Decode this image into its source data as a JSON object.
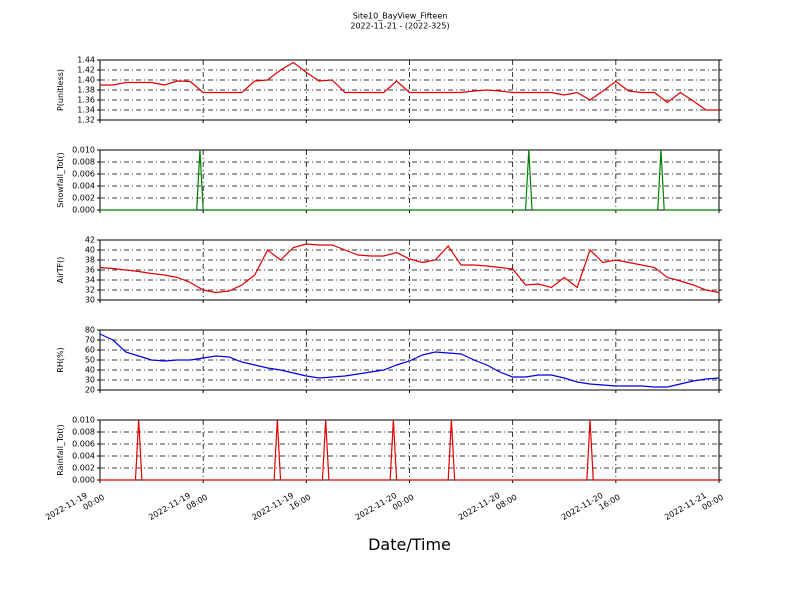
{
  "title": "Site10_BayView_Fifteen",
  "subtitle": "2022-11-21 - (2022-325)",
  "chart_data": [
    {
      "type": "line",
      "ylabel": "P(unitless)",
      "color": "#e00000",
      "grid": true,
      "xlim": [
        "2022-11-19 00:00",
        "2022-11-21 00:00"
      ],
      "xticks": [
        "2022-11-19 00:00",
        "2022-11-19 08:00",
        "2022-11-19 16:00",
        "2022-11-20 00:00",
        "2022-11-20 08:00",
        "2022-11-20 16:00",
        "2022-11-21 00:00"
      ],
      "ylim": [
        1.32,
        1.44
      ],
      "yticks": [
        1.32,
        1.34,
        1.36,
        1.38,
        {
          "value": 1.4,
          "label": "1.40"
        },
        1.42,
        1.44
      ],
      "x": [
        "2022-11-19 00:00",
        "2022-11-19 01:00",
        "2022-11-19 02:00",
        "2022-11-19 03:00",
        "2022-11-19 04:00",
        "2022-11-19 05:00",
        "2022-11-19 06:00",
        "2022-11-19 07:00",
        "2022-11-19 08:00",
        "2022-11-19 09:00",
        "2022-11-19 10:00",
        "2022-11-19 11:00",
        "2022-11-19 12:00",
        "2022-11-19 13:00",
        "2022-11-19 14:00",
        "2022-11-19 15:00",
        "2022-11-19 16:00",
        "2022-11-19 17:00",
        "2022-11-19 18:00",
        "2022-11-19 19:00",
        "2022-11-19 20:00",
        "2022-11-19 21:00",
        "2022-11-19 22:00",
        "2022-11-19 23:00",
        "2022-11-20 00:00",
        "2022-11-20 01:00",
        "2022-11-20 02:00",
        "2022-11-20 03:00",
        "2022-11-20 04:00",
        "2022-11-20 05:00",
        "2022-11-20 06:00",
        "2022-11-20 07:00",
        "2022-11-20 08:00",
        "2022-11-20 09:00",
        "2022-11-20 10:00",
        "2022-11-20 11:00",
        "2022-11-20 12:00",
        "2022-11-20 13:00",
        "2022-11-20 14:00",
        "2022-11-20 15:00",
        "2022-11-20 16:00",
        "2022-11-20 17:00",
        "2022-11-20 18:00",
        "2022-11-20 19:00",
        "2022-11-20 20:00",
        "2022-11-20 21:00",
        "2022-11-20 22:00",
        "2022-11-20 23:00",
        "2022-11-21 00:00"
      ],
      "values": [
        1.39,
        1.39,
        1.395,
        1.395,
        1.395,
        1.39,
        1.398,
        1.397,
        1.375,
        1.375,
        1.375,
        1.375,
        1.398,
        1.4,
        1.42,
        1.435,
        1.415,
        1.398,
        1.4,
        1.375,
        1.375,
        1.375,
        1.375,
        1.398,
        1.375,
        1.375,
        1.375,
        1.375,
        1.375,
        1.378,
        1.38,
        1.378,
        1.375,
        1.375,
        1.375,
        1.375,
        1.37,
        1.375,
        1.36,
        1.378,
        1.397,
        1.378,
        1.375,
        1.375,
        1.355,
        1.375,
        1.358,
        1.34,
        1.34
      ]
    },
    {
      "type": "line",
      "ylabel": "Snowfall_Tot()",
      "color": "#008000",
      "grid": true,
      "xlim": [
        "2022-11-19 00:00",
        "2022-11-21 00:00"
      ],
      "xticks": [
        "2022-11-19 00:00",
        "2022-11-19 08:00",
        "2022-11-19 16:00",
        "2022-11-20 00:00",
        "2022-11-20 08:00",
        "2022-11-20 16:00",
        "2022-11-21 00:00"
      ],
      "ylim": [
        0,
        0.01
      ],
      "yticks": [
        {
          "value": 0,
          "label": "0.000"
        },
        0.002,
        0.004,
        0.006,
        0.008,
        {
          "value": 0.01,
          "label": "0.010"
        }
      ],
      "x": [
        "2022-11-19 00:00",
        "2022-11-19 07:30",
        "2022-11-19 07:45",
        "2022-11-19 08:00",
        "2022-11-20 09:00",
        "2022-11-20 09:15",
        "2022-11-20 09:30",
        "2022-11-20 19:15",
        "2022-11-20 19:30",
        "2022-11-20 19:45",
        "2022-11-21 00:00"
      ],
      "values": [
        0,
        0,
        0.01,
        0,
        0,
        0.01,
        0,
        0,
        0.01,
        0,
        0
      ]
    },
    {
      "type": "line",
      "ylabel": "AirTF()",
      "color": "#e00000",
      "grid": true,
      "xlim": [
        "2022-11-19 00:00",
        "2022-11-21 00:00"
      ],
      "xticks": [
        "2022-11-19 00:00",
        "2022-11-19 08:00",
        "2022-11-19 16:00",
        "2022-11-20 00:00",
        "2022-11-20 08:00",
        "2022-11-20 16:00",
        "2022-11-21 00:00"
      ],
      "ylim": [
        30,
        42
      ],
      "yticks": [
        30,
        32,
        34,
        36,
        38,
        40,
        42
      ],
      "x": [
        "2022-11-19 00:00",
        "2022-11-19 01:00",
        "2022-11-19 02:00",
        "2022-11-19 03:00",
        "2022-11-19 04:00",
        "2022-11-19 05:00",
        "2022-11-19 06:00",
        "2022-11-19 07:00",
        "2022-11-19 08:00",
        "2022-11-19 09:00",
        "2022-11-19 10:00",
        "2022-11-19 11:00",
        "2022-11-19 12:00",
        "2022-11-19 13:00",
        "2022-11-19 14:00",
        "2022-11-19 15:00",
        "2022-11-19 16:00",
        "2022-11-19 17:00",
        "2022-11-19 18:00",
        "2022-11-19 19:00",
        "2022-11-19 20:00",
        "2022-11-19 21:00",
        "2022-11-19 22:00",
        "2022-11-19 23:00",
        "2022-11-20 00:00",
        "2022-11-20 01:00",
        "2022-11-20 02:00",
        "2022-11-20 03:00",
        "2022-11-20 04:00",
        "2022-11-20 05:00",
        "2022-11-20 06:00",
        "2022-11-20 07:00",
        "2022-11-20 08:00",
        "2022-11-20 09:00",
        "2022-11-20 10:00",
        "2022-11-20 11:00",
        "2022-11-20 12:00",
        "2022-11-20 13:00",
        "2022-11-20 14:00",
        "2022-11-20 15:00",
        "2022-11-20 16:00",
        "2022-11-20 17:00",
        "2022-11-20 18:00",
        "2022-11-20 19:00",
        "2022-11-20 20:00",
        "2022-11-20 21:00",
        "2022-11-20 22:00",
        "2022-11-20 23:00",
        "2022-11-21 00:00"
      ],
      "values": [
        36.5,
        36.3,
        36,
        35.7,
        35.3,
        35,
        34.5,
        33.5,
        32,
        31.5,
        31.8,
        33,
        35,
        40,
        38,
        40.5,
        41.2,
        41,
        41,
        40,
        39,
        38.8,
        38.8,
        39.5,
        38.2,
        37.5,
        38,
        40.8,
        37,
        37,
        36.8,
        36.5,
        36.2,
        33,
        33.2,
        32.5,
        34.5,
        32.5,
        40,
        37.5,
        38,
        37.5,
        37,
        36.5,
        34.5,
        33.8,
        33,
        32,
        31.5
      ]
    },
    {
      "type": "line",
      "ylabel": "RH(%)",
      "color": "#0000e0",
      "grid": true,
      "xlim": [
        "2022-11-19 00:00",
        "2022-11-21 00:00"
      ],
      "xticks": [
        "2022-11-19 00:00",
        "2022-11-19 08:00",
        "2022-11-19 16:00",
        "2022-11-20 00:00",
        "2022-11-20 08:00",
        "2022-11-20 16:00",
        "2022-11-21 00:00"
      ],
      "ylim": [
        20,
        80
      ],
      "yticks": [
        20,
        30,
        40,
        50,
        60,
        70,
        80
      ],
      "x": [
        "2022-11-19 00:00",
        "2022-11-19 01:00",
        "2022-11-19 02:00",
        "2022-11-19 03:00",
        "2022-11-19 04:00",
        "2022-11-19 05:00",
        "2022-11-19 06:00",
        "2022-11-19 07:00",
        "2022-11-19 08:00",
        "2022-11-19 09:00",
        "2022-11-19 10:00",
        "2022-11-19 11:00",
        "2022-11-19 12:00",
        "2022-11-19 13:00",
        "2022-11-19 14:00",
        "2022-11-19 15:00",
        "2022-11-19 16:00",
        "2022-11-19 17:00",
        "2022-11-19 18:00",
        "2022-11-19 19:00",
        "2022-11-19 20:00",
        "2022-11-19 21:00",
        "2022-11-19 22:00",
        "2022-11-19 23:00",
        "2022-11-20 00:00",
        "2022-11-20 01:00",
        "2022-11-20 02:00",
        "2022-11-20 03:00",
        "2022-11-20 04:00",
        "2022-11-20 05:00",
        "2022-11-20 06:00",
        "2022-11-20 07:00",
        "2022-11-20 08:00",
        "2022-11-20 09:00",
        "2022-11-20 10:00",
        "2022-11-20 11:00",
        "2022-11-20 12:00",
        "2022-11-20 13:00",
        "2022-11-20 14:00",
        "2022-11-20 15:00",
        "2022-11-20 16:00",
        "2022-11-20 17:00",
        "2022-11-20 18:00",
        "2022-11-20 19:00",
        "2022-11-20 20:00",
        "2022-11-20 21:00",
        "2022-11-20 22:00",
        "2022-11-20 23:00",
        "2022-11-21 00:00"
      ],
      "values": [
        76,
        70,
        58,
        54,
        50,
        49,
        50,
        50,
        52,
        54,
        53,
        48,
        45,
        42,
        40,
        37,
        34,
        32,
        33,
        34,
        36,
        38,
        40,
        45,
        49,
        55,
        58,
        57,
        56,
        50,
        45,
        38,
        33,
        33,
        35,
        35,
        32,
        28,
        26,
        25,
        24,
        24,
        24,
        23,
        23,
        26,
        29,
        31,
        32
      ]
    },
    {
      "type": "line",
      "ylabel": "Rainfall_Tot()",
      "xlabel": "Date/Time",
      "color": "#e00000",
      "grid": true,
      "xlim": [
        "2022-11-19 00:00",
        "2022-11-21 00:00"
      ],
      "xticks": [
        "2022-11-19 00:00",
        "2022-11-19 08:00",
        "2022-11-19 16:00",
        "2022-11-20 00:00",
        "2022-11-20 08:00",
        "2022-11-20 16:00",
        "2022-11-21 00:00"
      ],
      "ylim": [
        0,
        0.01
      ],
      "yticks": [
        {
          "value": 0,
          "label": "0.000"
        },
        0.002,
        0.004,
        0.006,
        0.008,
        {
          "value": 0.01,
          "label": "0.010"
        }
      ],
      "x": [
        "2022-11-19 00:00",
        "2022-11-19 02:45",
        "2022-11-19 03:00",
        "2022-11-19 03:15",
        "2022-11-19 13:30",
        "2022-11-19 13:45",
        "2022-11-19 14:00",
        "2022-11-19 17:15",
        "2022-11-19 17:30",
        "2022-11-19 17:45",
        "2022-11-19 22:30",
        "2022-11-19 22:45",
        "2022-11-19 23:00",
        "2022-11-20 03:00",
        "2022-11-20 03:15",
        "2022-11-20 03:30",
        "2022-11-20 13:45",
        "2022-11-20 14:00",
        "2022-11-20 14:15",
        "2022-11-21 00:00"
      ],
      "values": [
        0,
        0,
        0.01,
        0,
        0,
        0.01,
        0,
        0,
        0.01,
        0,
        0,
        0.01,
        0,
        0,
        0.01,
        0,
        0,
        0.01,
        0,
        0
      ]
    }
  ]
}
